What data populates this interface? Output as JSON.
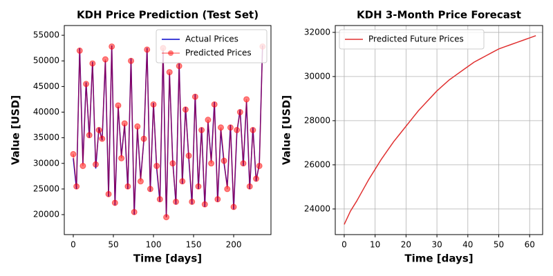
{
  "chart_data": [
    {
      "type": "line",
      "title": "KDH Price Prediction (Test Set)",
      "x_label": "Time [days]",
      "y_label": "Value [USD]",
      "x": [
        0,
        4,
        8,
        12,
        16,
        20,
        24,
        28,
        32,
        36,
        40,
        44,
        48,
        52,
        56,
        60,
        64,
        68,
        72,
        76,
        80,
        84,
        88,
        92,
        96,
        100,
        104,
        108,
        112,
        116,
        120,
        124,
        128,
        132,
        136,
        140,
        144,
        148,
        152,
        156,
        160,
        164,
        168,
        172,
        176,
        180,
        184,
        188,
        192,
        196,
        200,
        204,
        208,
        212,
        216,
        220,
        224,
        228,
        232,
        236
      ],
      "series": [
        {
          "name": "Actual Prices",
          "color": "#0000cc",
          "values": [
            31000,
            25000,
            52500,
            30000,
            45800,
            35000,
            49800,
            29000,
            37000,
            34500,
            50000,
            23500,
            53000,
            21800,
            41000,
            31500,
            37500,
            25000,
            50500,
            20000,
            36800,
            27000,
            34500,
            52500,
            24500,
            41800,
            29000,
            22500,
            52000,
            19500,
            47500,
            30500,
            22000,
            49500,
            26000,
            41000,
            31000,
            22000,
            43500,
            25000,
            37000,
            21500,
            38000,
            30500,
            42000,
            22500,
            36500,
            30000,
            25500,
            37500,
            21000,
            36000,
            40500,
            29500,
            42000,
            25000,
            37000,
            26500,
            30000,
            53000
          ]
        },
        {
          "name": "Predicted Prices",
          "color": "#ff0000",
          "marker": "o",
          "opacity": 0.5,
          "values": [
            31800,
            25500,
            52000,
            29500,
            45500,
            35500,
            49500,
            29800,
            36500,
            34800,
            50300,
            24000,
            52800,
            22300,
            41300,
            31000,
            37800,
            25500,
            50000,
            20500,
            37200,
            26500,
            34800,
            52200,
            25000,
            41500,
            29500,
            23000,
            52500,
            19500,
            47800,
            30000,
            22500,
            49000,
            26500,
            40500,
            31500,
            22500,
            43000,
            25500,
            36500,
            22000,
            38500,
            30000,
            41500,
            23000,
            37000,
            30500,
            25000,
            37000,
            21500,
            36500,
            40000,
            30000,
            42500,
            25500,
            36500,
            27000,
            29500,
            52800
          ]
        }
      ],
      "xlim": [
        -11.2,
        246.5
      ],
      "xticks": [
        0,
        50,
        100,
        150,
        200
      ],
      "ylim": [
        16100,
        56900
      ],
      "yticks": [
        20000,
        25000,
        30000,
        35000,
        40000,
        45000,
        50000,
        55000
      ],
      "grid": false,
      "legend": "upper right"
    },
    {
      "type": "line",
      "title": "KDH 3-Month Price Forecast",
      "x_label": "Time [days]",
      "y_label": "Value [USD]",
      "x": [
        0,
        2,
        4,
        6,
        8,
        10,
        12,
        14,
        16,
        18,
        20,
        22,
        24,
        26,
        28,
        30,
        32,
        34,
        36,
        38,
        40,
        42,
        44,
        46,
        48,
        50,
        52,
        54,
        56,
        58,
        60,
        62
      ],
      "series": [
        {
          "name": "Predicted Future Prices",
          "color": "#e03030",
          "values": [
            23300,
            23900,
            24350,
            24850,
            25350,
            25800,
            26250,
            26650,
            27050,
            27400,
            27750,
            28100,
            28450,
            28750,
            29050,
            29350,
            29600,
            29850,
            30050,
            30250,
            30450,
            30650,
            30800,
            30950,
            31100,
            31250,
            31350,
            31450,
            31550,
            31650,
            31750,
            31850
          ]
        }
      ],
      "xlim": [
        -2.9,
        64.2
      ],
      "xticks": [
        0,
        10,
        20,
        30,
        40,
        50,
        60
      ],
      "ylim": [
        22840,
        32310
      ],
      "yticks": [
        24000,
        26000,
        28000,
        30000,
        32000
      ],
      "grid": true,
      "legend": "upper left"
    }
  ]
}
